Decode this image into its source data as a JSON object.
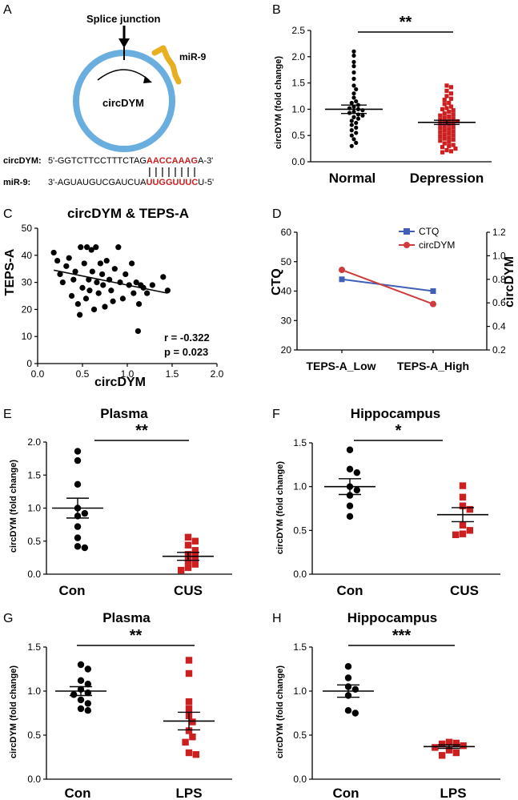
{
  "panel_a": {
    "letter": "A",
    "splice_label": "Splice junction",
    "mir_label": "miR-9",
    "circle_label": "circDYM",
    "seq1_name": "circDYM:",
    "seq1_black": "5'-GGTCTTCCTTTCTAG",
    "seq1_red": "AACCAAAG",
    "seq1_tail": "A-3'",
    "seq2_name": "miR-9:",
    "seq2_black": "3'-AGUAUGUCGAUCUA",
    "seq2_red": "UUGGUUUC",
    "seq2_tail": "U-5'",
    "colors": {
      "ring": "#6aaee0",
      "mir": "#e8b020",
      "match": "#cc1f1f"
    }
  },
  "chart_data": [
    {
      "id": "B",
      "letter": "B",
      "type": "scatter",
      "title": "",
      "ylabel": "circDYM (fold change)",
      "ylim": [
        0,
        2.5
      ],
      "yticks": [
        "0.0",
        "0.5",
        "1.0",
        "1.5",
        "2.0",
        "2.5"
      ],
      "categories": [
        "Normal",
        "Depression"
      ],
      "significance": "**",
      "series": [
        {
          "name": "Normal",
          "color": "#000000",
          "shape": "circle",
          "mean": 1.0,
          "sem": 0.08,
          "values": [
            2.1,
            2.02,
            1.9,
            1.82,
            1.7,
            1.58,
            1.45,
            1.38,
            1.3,
            1.22,
            1.15,
            1.12,
            1.08,
            1.05,
            1.02,
            1.0,
            0.98,
            0.95,
            0.93,
            0.9,
            0.88,
            0.85,
            0.82,
            0.78,
            0.74,
            0.7,
            0.65,
            0.6,
            0.55,
            0.5,
            0.43,
            0.36,
            0.3
          ]
        },
        {
          "name": "Depression",
          "color": "#cc1f1f",
          "shape": "square",
          "mean": 0.75,
          "sem": 0.04,
          "values": [
            1.45,
            1.42,
            1.35,
            1.3,
            1.25,
            1.2,
            1.18,
            1.12,
            1.1,
            1.05,
            1.02,
            1.0,
            0.98,
            0.95,
            0.92,
            0.9,
            0.88,
            0.86,
            0.84,
            0.82,
            0.8,
            0.78,
            0.77,
            0.76,
            0.74,
            0.72,
            0.7,
            0.68,
            0.66,
            0.64,
            0.62,
            0.6,
            0.58,
            0.56,
            0.54,
            0.52,
            0.5,
            0.48,
            0.46,
            0.44,
            0.42,
            0.4,
            0.38,
            0.35,
            0.32,
            0.3,
            0.28,
            0.25,
            0.22,
            0.2,
            0.18
          ]
        }
      ]
    },
    {
      "id": "C",
      "letter": "C",
      "type": "scatter",
      "title": "circDYM & TEPS-A",
      "xlabel": "circDYM",
      "ylabel": "TEPS-A",
      "xlim": [
        0,
        2.0
      ],
      "ylim": [
        0,
        50
      ],
      "xticks": [
        "0.0",
        "0.5",
        "1.0",
        "1.5",
        "2.0"
      ],
      "yticks": [
        "0",
        "10",
        "20",
        "30",
        "40",
        "50"
      ],
      "r_text": "r = -0.322",
      "p_text": "p = 0.023",
      "fit": {
        "x0": 0.18,
        "y0": 34.5,
        "x1": 1.45,
        "y1": 26.0
      },
      "points": [
        [
          0.18,
          41
        ],
        [
          0.22,
          38
        ],
        [
          0.25,
          33
        ],
        [
          0.28,
          30
        ],
        [
          0.32,
          36
        ],
        [
          0.35,
          39
        ],
        [
          0.38,
          25
        ],
        [
          0.4,
          31
        ],
        [
          0.42,
          34
        ],
        [
          0.45,
          22
        ],
        [
          0.47,
          18
        ],
        [
          0.48,
          43
        ],
        [
          0.5,
          28
        ],
        [
          0.52,
          37
        ],
        [
          0.54,
          24
        ],
        [
          0.55,
          43
        ],
        [
          0.57,
          31
        ],
        [
          0.58,
          27
        ],
        [
          0.6,
          42
        ],
        [
          0.61,
          34
        ],
        [
          0.63,
          20
        ],
        [
          0.65,
          43
        ],
        [
          0.66,
          30
        ],
        [
          0.68,
          26
        ],
        [
          0.7,
          37
        ],
        [
          0.72,
          33
        ],
        [
          0.73,
          29
        ],
        [
          0.75,
          21
        ],
        [
          0.77,
          38
        ],
        [
          0.8,
          31
        ],
        [
          0.82,
          27
        ],
        [
          0.84,
          23
        ],
        [
          0.86,
          35
        ],
        [
          0.9,
          43
        ],
        [
          0.92,
          30
        ],
        [
          0.95,
          24
        ],
        [
          0.98,
          33
        ],
        [
          1.02,
          29
        ],
        [
          1.05,
          37
        ],
        [
          1.07,
          26
        ],
        [
          1.1,
          30
        ],
        [
          1.12,
          12
        ],
        [
          1.13,
          22
        ],
        [
          1.15,
          29
        ],
        [
          1.18,
          28
        ],
        [
          1.22,
          26
        ],
        [
          1.28,
          29
        ],
        [
          1.4,
          32
        ],
        [
          1.45,
          27
        ]
      ]
    },
    {
      "id": "D",
      "letter": "D",
      "type": "line",
      "categories": [
        "TEPS-A_Low",
        "TEPS-A_High"
      ],
      "ylabel_left": "CTQ",
      "ylabel_right": "circDYM",
      "ylim_left": [
        20,
        60
      ],
      "ylim_right": [
        0.2,
        1.2
      ],
      "yticks_left": [
        "20",
        "30",
        "40",
        "50",
        "60"
      ],
      "yticks_right": [
        "0.2",
        "0.4",
        "0.6",
        "0.8",
        "1.0",
        "1.2"
      ],
      "series": [
        {
          "name": "CTQ",
          "color": "#3f5fb8",
          "axis": "left",
          "marker": "square",
          "values": [
            44,
            40
          ]
        },
        {
          "name": "circDYM",
          "color": "#d03a3a",
          "axis": "right",
          "marker": "circle",
          "values": [
            0.88,
            0.59
          ]
        }
      ]
    },
    {
      "id": "E",
      "letter": "E",
      "type": "scatter",
      "title": "Plasma",
      "ylabel": "circDYM (fold change)",
      "ylim": [
        0,
        2.0
      ],
      "yticks": [
        "0.0",
        "0.5",
        "1.0",
        "1.5",
        "2.0"
      ],
      "categories": [
        "Con",
        "CUS"
      ],
      "significance": "**",
      "series": [
        {
          "name": "Con",
          "color": "#000000",
          "shape": "circle",
          "mean": 1.0,
          "sem": 0.15,
          "values": [
            1.86,
            1.72,
            1.36,
            1.0,
            0.92,
            0.88,
            0.72,
            0.55,
            0.42,
            0.4
          ]
        },
        {
          "name": "CUS",
          "color": "#cc1f1f",
          "shape": "square",
          "mean": 0.27,
          "sem": 0.06,
          "values": [
            0.56,
            0.5,
            0.44,
            0.36,
            0.3,
            0.26,
            0.2,
            0.15,
            0.1,
            0.06
          ]
        }
      ]
    },
    {
      "id": "F",
      "letter": "F",
      "type": "scatter",
      "title": "Hippocampus",
      "ylabel": "circDYM (fold change)",
      "ylim": [
        0,
        1.5
      ],
      "yticks": [
        "0.0",
        "0.5",
        "1.0",
        "1.5"
      ],
      "categories": [
        "Con",
        "CUS"
      ],
      "significance": "*",
      "series": [
        {
          "name": "Con",
          "color": "#000000",
          "shape": "circle",
          "mean": 1.0,
          "sem": 0.09,
          "values": [
            1.42,
            1.2,
            1.16,
            1.0,
            0.96,
            0.9,
            0.78,
            0.66
          ]
        },
        {
          "name": "CUS",
          "color": "#cc1f1f",
          "shape": "square",
          "mean": 0.68,
          "sem": 0.08,
          "values": [
            1.01,
            0.88,
            0.78,
            0.74,
            0.56,
            0.5,
            0.46,
            0.45
          ]
        }
      ]
    },
    {
      "id": "G",
      "letter": "G",
      "type": "scatter",
      "title": "Plasma",
      "ylabel": "circDYM (fold change)",
      "ylim": [
        0,
        1.5
      ],
      "yticks": [
        "0.0",
        "0.5",
        "1.0",
        "1.5"
      ],
      "categories": [
        "Con",
        "LPS"
      ],
      "significance": "**",
      "series": [
        {
          "name": "Con",
          "color": "#000000",
          "shape": "circle",
          "mean": 1.0,
          "sem": 0.05,
          "values": [
            1.3,
            1.25,
            1.12,
            1.08,
            1.02,
            0.98,
            0.96,
            0.9,
            0.86,
            0.8,
            0.78
          ]
        },
        {
          "name": "LPS",
          "color": "#cc1f1f",
          "shape": "square",
          "mean": 0.66,
          "sem": 0.1,
          "values": [
            1.35,
            1.2,
            0.88,
            0.8,
            0.72,
            0.65,
            0.55,
            0.48,
            0.42,
            0.3,
            0.28
          ]
        }
      ]
    },
    {
      "id": "H",
      "letter": "H",
      "type": "scatter",
      "title": "Hippocampus",
      "ylabel": "circDYM (fold change)",
      "ylim": [
        0,
        1.5
      ],
      "yticks": [
        "0.0",
        "0.5",
        "1.0",
        "1.5"
      ],
      "categories": [
        "Con",
        "LPS"
      ],
      "significance": "***",
      "series": [
        {
          "name": "Con",
          "color": "#000000",
          "shape": "circle",
          "mean": 1.0,
          "sem": 0.07,
          "values": [
            1.28,
            1.15,
            1.05,
            1.02,
            0.95,
            0.78,
            0.75
          ]
        },
        {
          "name": "LPS",
          "color": "#cc1f1f",
          "shape": "square",
          "mean": 0.37,
          "sem": 0.02,
          "values": [
            0.42,
            0.41,
            0.4,
            0.38,
            0.36,
            0.33,
            0.3,
            0.27
          ]
        }
      ]
    }
  ]
}
